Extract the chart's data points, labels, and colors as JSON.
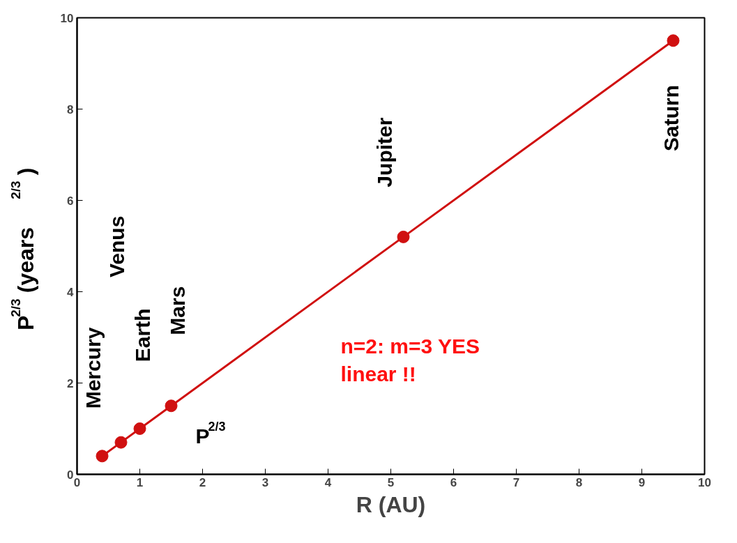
{
  "chart_data": {
    "type": "line",
    "xlabel": "R (AU)",
    "ylabel": "P$^{2/3}$ (years$^{2/3}$)",
    "x": [
      0.4,
      0.7,
      1.0,
      1.5,
      5.2,
      9.5
    ],
    "series": [
      {
        "name": "P$^{2/3}$",
        "color": "#d01010",
        "values": [
          0.4,
          0.7,
          1.0,
          1.5,
          5.2,
          9.5
        ]
      }
    ],
    "xlim": [
      0,
      10
    ],
    "ylim": [
      0,
      10
    ],
    "xticks": [
      0,
      1,
      2,
      3,
      4,
      5,
      6,
      7,
      8,
      9,
      10
    ],
    "yticks": [
      0,
      2,
      4,
      6,
      8,
      10
    ],
    "grid": false,
    "legend": false,
    "marker": "circle",
    "line_style": "solid",
    "annotations": [
      "Mercury",
      "Venus",
      "Earth",
      "Mars",
      "Jupiter",
      "Saturn",
      "n=2: m=3 YES\n linear !!"
    ]
  }
}
